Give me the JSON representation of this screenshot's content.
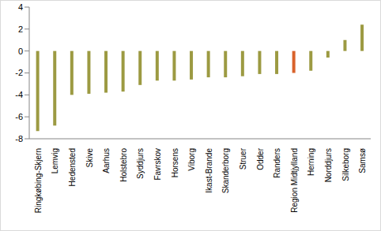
{
  "chart_data": {
    "type": "bar",
    "categories": [
      "Ringkøbing-Skjern",
      "Lemvig",
      "Hedensted",
      "Skive",
      "Aarhus",
      "Holstebro",
      "Syddjurs",
      "Favrskov",
      "Horsens",
      "Viborg",
      "Ikast-Brande",
      "Skanderborg",
      "Struer",
      "Odder",
      "Randers",
      "Region Midtjylland",
      "Herning",
      "Norddjurs",
      "Silkeborg",
      "Samsø"
    ],
    "values": [
      -7.3,
      -6.8,
      -4.0,
      -3.9,
      -3.8,
      -3.7,
      -3.1,
      -2.7,
      -2.7,
      -2.6,
      -2.4,
      -2.4,
      -2.3,
      -2.1,
      -2.1,
      -2.0,
      -1.8,
      -0.6,
      1.0,
      2.4
    ],
    "colors": [
      "#9c9a42",
      "#9c9a42",
      "#9c9a42",
      "#9c9a42",
      "#9c9a42",
      "#9c9a42",
      "#9c9a42",
      "#9c9a42",
      "#9c9a42",
      "#9c9a42",
      "#9c9a42",
      "#9c9a42",
      "#9c9a42",
      "#9c9a42",
      "#9c9a42",
      "#d9622b",
      "#9c9a42",
      "#9c9a42",
      "#9c9a42",
      "#9c9a42"
    ],
    "ylim": [
      -8,
      4
    ],
    "yticks": [
      -8,
      -6,
      -4,
      -2,
      0,
      2,
      4
    ],
    "grid": false
  }
}
